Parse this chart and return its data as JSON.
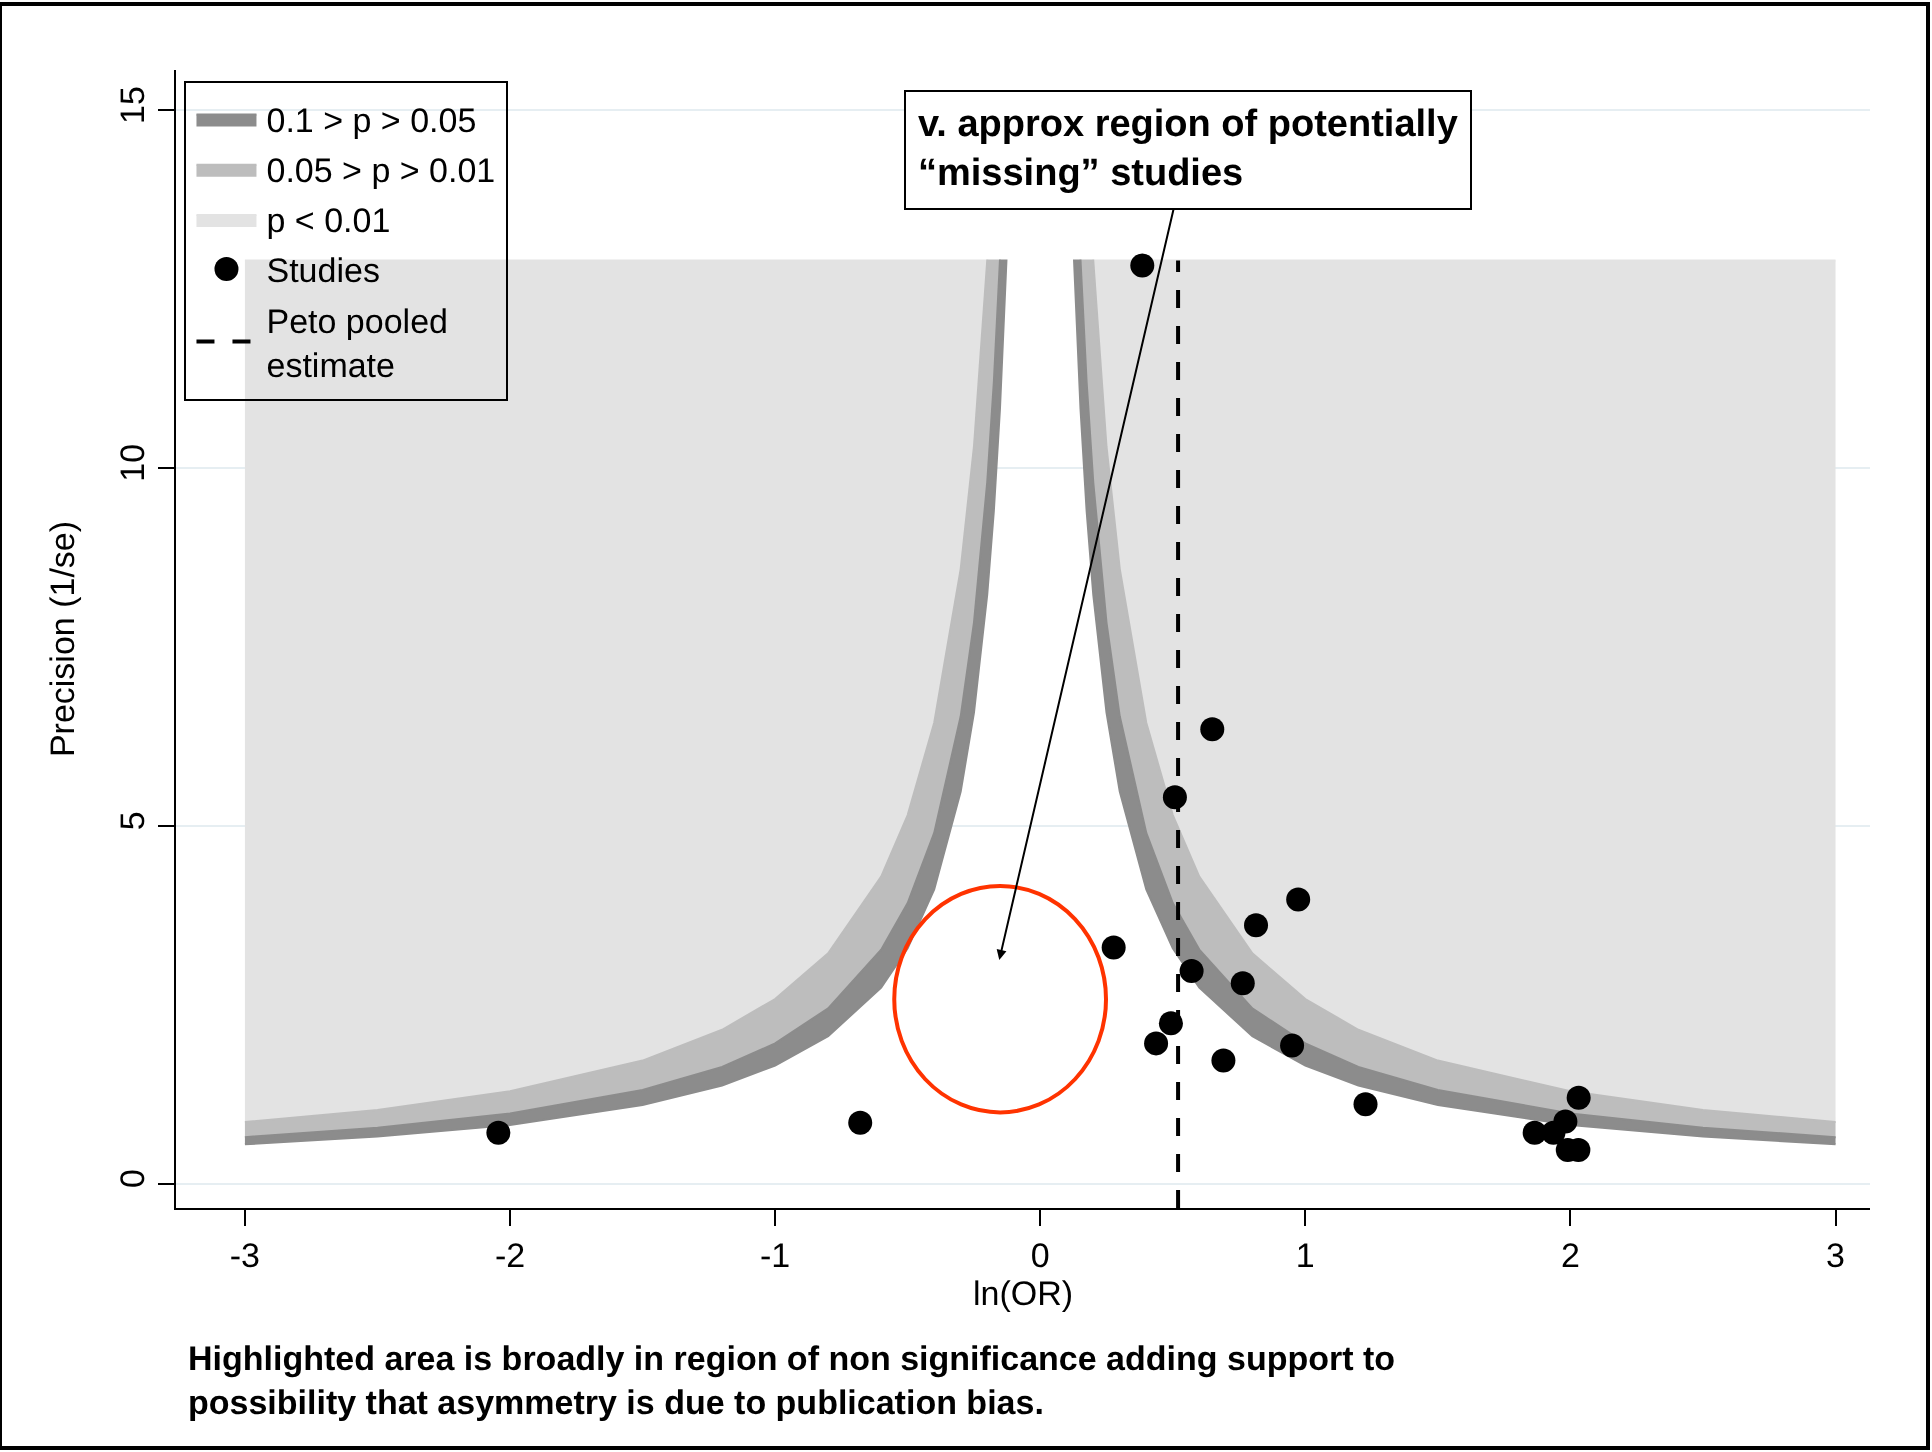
{
  "chart_data": {
    "type": "scatter",
    "xlabel": "ln(OR)",
    "ylabel": "Precision (1/se)",
    "xlim": [
      -3.26,
      3.13
    ],
    "xticks": [
      -3,
      -2,
      -1,
      0,
      1,
      2,
      3
    ],
    "ylim": [
      -0.34,
      15.56
    ],
    "yticks": [
      0,
      5,
      10,
      15
    ],
    "grid": "y",
    "legend": "top left",
    "series": [
      {
        "name": "0.1 > p > 0.05",
        "type": "area",
        "color": "#8c8c8c",
        "x": [
          -3,
          -2.5,
          -2,
          -1.5,
          -1.2,
          -1,
          -0.8,
          -0.6,
          -0.5,
          -0.4,
          -0.3,
          -0.25,
          -0.2,
          -0.175,
          -0.152,
          -0.1275,
          -0.152,
          -0.175,
          -0.2,
          -0.25,
          -0.3,
          -0.4,
          -0.5,
          -0.6,
          -0.8,
          -1,
          -1.2,
          -1.5,
          -2,
          -2.5,
          -3
        ],
        "values": [
          0.55,
          0.66,
          0.82,
          1.1,
          1.37,
          1.65,
          2.06,
          2.74,
          3.29,
          4.11,
          5.48,
          6.58,
          8.23,
          9.4,
          10.82,
          12.9,
          12.9,
          11.2,
          9.8,
          7.84,
          6.53,
          4.9,
          3.92,
          3.27,
          2.45,
          1.96,
          1.63,
          1.31,
          0.98,
          0.78,
          0.65
        ]
      },
      {
        "name": "0.05 > p > 0.01",
        "type": "area",
        "color": "#bdbdbd",
        "x": [
          -3,
          -2.5,
          -2,
          -1.5,
          -1.2,
          -1,
          -0.8,
          -0.6,
          -0.5,
          -0.4,
          -0.3,
          -0.25,
          -0.2,
          -0.175,
          -0.152,
          -0.175,
          -0.2,
          -0.25,
          -0.3,
          -0.4,
          -0.5,
          -0.6,
          -0.8,
          -1,
          -1.2,
          -1.5,
          -2,
          -2.5,
          -3
        ],
        "values": [
          0.65,
          0.78,
          0.98,
          1.31,
          1.63,
          1.96,
          2.45,
          3.27,
          3.92,
          4.9,
          6.53,
          7.84,
          9.8,
          11.2,
          12.9,
          12.9,
          12.9,
          10.3,
          8.59,
          6.44,
          5.15,
          4.29,
          3.22,
          2.58,
          2.15,
          1.72,
          1.29,
          1.03,
          0.86
        ]
      },
      {
        "name": "p < 0.01",
        "type": "area",
        "color": "#e3e3e3",
        "x": [
          -3,
          -2.5,
          -2,
          -1.5,
          -1.2,
          -1,
          -0.8,
          -0.6,
          -0.5,
          -0.4,
          -0.3,
          -0.25,
          -0.2,
          -3
        ],
        "values": [
          0.86,
          1.03,
          1.29,
          1.72,
          2.15,
          2.58,
          3.22,
          4.29,
          5.15,
          6.44,
          8.59,
          10.3,
          12.9,
          12.9
        ]
      },
      {
        "type": "area",
        "color": "#8c8c8c",
        "x": [
          3,
          2.5,
          2,
          1.5,
          1.2,
          1,
          0.8,
          0.6,
          0.5,
          0.4,
          0.3,
          0.25,
          0.2,
          0.175,
          0.152,
          0.1275,
          0.152,
          0.175,
          0.2,
          0.25,
          0.3,
          0.4,
          0.5,
          0.6,
          0.8,
          1,
          1.2,
          1.5,
          2,
          2.5,
          3
        ],
        "values": [
          0.55,
          0.66,
          0.82,
          1.1,
          1.37,
          1.65,
          2.06,
          2.74,
          3.29,
          4.11,
          5.48,
          6.58,
          8.23,
          9.4,
          10.82,
          12.9,
          12.9,
          11.2,
          9.8,
          7.84,
          6.53,
          4.9,
          3.92,
          3.27,
          2.45,
          1.96,
          1.63,
          1.31,
          0.98,
          0.78,
          0.65
        ]
      },
      {
        "type": "area",
        "color": "#bdbdbd",
        "x": [
          3,
          2.5,
          2,
          1.5,
          1.2,
          1,
          0.8,
          0.6,
          0.5,
          0.4,
          0.3,
          0.25,
          0.2,
          0.175,
          0.152,
          0.175,
          0.2,
          0.25,
          0.3,
          0.4,
          0.5,
          0.6,
          0.8,
          1,
          1.2,
          1.5,
          2,
          2.5,
          3
        ],
        "values": [
          0.65,
          0.78,
          0.98,
          1.31,
          1.63,
          1.96,
          2.45,
          3.27,
          3.92,
          4.9,
          6.53,
          7.84,
          9.8,
          11.2,
          12.9,
          12.9,
          12.9,
          10.3,
          8.59,
          6.44,
          5.15,
          4.29,
          3.22,
          2.58,
          2.15,
          1.72,
          1.29,
          1.03,
          0.86
        ]
      },
      {
        "type": "area",
        "color": "#e3e3e3",
        "x": [
          3,
          2.5,
          2,
          1.5,
          1.2,
          1,
          0.8,
          0.6,
          0.5,
          0.4,
          0.3,
          0.25,
          0.2,
          3
        ],
        "values": [
          0.86,
          1.03,
          1.29,
          1.72,
          2.15,
          2.58,
          3.22,
          4.29,
          5.15,
          6.44,
          8.59,
          10.3,
          12.9,
          12.9
        ]
      },
      {
        "name": "Studies",
        "marker": "circle",
        "color": "#000000",
        "x": [
          0.385,
          0.649,
          0.508,
          0.973,
          0.814,
          0.277,
          0.571,
          0.764,
          0.493,
          0.437,
          0.95,
          0.691,
          1.227,
          2.031,
          1.865,
          1.936,
          1.981,
          1.99,
          2.03,
          -2.044,
          -0.679
        ],
        "values": [
          12.83,
          6.35,
          5.4,
          3.97,
          3.61,
          3.3,
          2.97,
          2.8,
          2.24,
          1.96,
          1.93,
          1.72,
          1.11,
          1.2,
          0.71,
          0.71,
          0.87,
          0.47,
          0.47,
          0.71,
          0.85
        ]
      },
      {
        "name": "Peto pooled estimate",
        "type": "line",
        "line_style": "dashed",
        "color": "#000000",
        "x": [
          0.52,
          0.52
        ],
        "values": [
          -0.34,
          12.9
        ]
      }
    ],
    "annotations": [
      "v. approx region of potentially “missing” studies",
      "Highlighted area is broadly in region of non significance adding support to possibility that asymmetry is due to publication bias."
    ]
  }
}
